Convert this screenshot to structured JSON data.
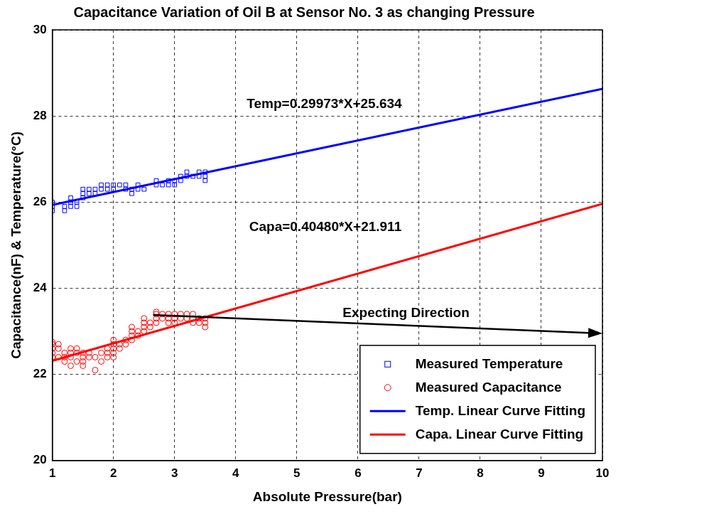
{
  "chart_data": {
    "type": "scatter",
    "title": "Capacitance Variation of Oil B at Sensor No. 3 as changing Pressure",
    "x_label": "Absolute Pressure(bar)",
    "y_label": "Capacitance(nF) & Temperature(°C)",
    "xlim": [
      1,
      10
    ],
    "xticks": [
      1,
      2,
      3,
      4,
      5,
      6,
      7,
      8,
      9,
      10
    ],
    "ylim": [
      20,
      30
    ],
    "yticks": [
      20,
      22,
      24,
      26,
      28,
      30
    ],
    "grid": true,
    "legend": "lower right",
    "series": [
      {
        "name": "Measured Temperature",
        "type": "scatter",
        "marker": "square",
        "color": "#0000ff",
        "x": [
          1.0,
          1.0,
          1.0,
          1.2,
          1.2,
          1.3,
          1.3,
          1.3,
          1.4,
          1.4,
          1.5,
          1.5,
          1.5,
          1.6,
          1.6,
          1.7,
          1.7,
          1.8,
          1.8,
          1.9,
          1.9,
          2.0,
          2.0,
          2.1,
          2.2,
          2.2,
          2.3,
          2.3,
          2.4,
          2.4,
          2.5,
          2.7,
          2.7,
          2.8,
          2.9,
          2.9,
          3.0,
          3.0,
          3.1,
          3.1,
          3.2,
          3.2,
          3.3,
          3.4,
          3.4,
          3.5,
          3.5,
          3.5
        ],
        "values": [
          25.8,
          25.9,
          26.0,
          25.8,
          25.9,
          25.9,
          26.0,
          26.1,
          26.0,
          25.9,
          26.1,
          26.3,
          26.2,
          26.2,
          26.3,
          26.2,
          26.3,
          26.3,
          26.4,
          26.3,
          26.4,
          26.3,
          26.4,
          26.4,
          26.3,
          26.4,
          26.2,
          26.3,
          26.3,
          26.4,
          26.3,
          26.4,
          26.5,
          26.4,
          26.4,
          26.5,
          26.5,
          26.4,
          26.5,
          26.6,
          26.6,
          26.7,
          26.6,
          26.7,
          26.6,
          26.7,
          26.6,
          26.5
        ]
      },
      {
        "name": "Measured Capacitance",
        "type": "scatter",
        "marker": "circle",
        "color": "#ff0000",
        "x": [
          1.0,
          1.0,
          1.0,
          1.0,
          1.0,
          1.1,
          1.1,
          1.1,
          1.2,
          1.2,
          1.2,
          1.3,
          1.3,
          1.3,
          1.3,
          1.4,
          1.4,
          1.4,
          1.5,
          1.5,
          1.5,
          1.5,
          1.6,
          1.6,
          1.7,
          1.7,
          1.8,
          1.8,
          1.9,
          1.9,
          1.9,
          2.0,
          2.0,
          2.0,
          2.0,
          2.0,
          2.1,
          2.1,
          2.2,
          2.2,
          2.3,
          2.3,
          2.3,
          2.3,
          2.4,
          2.4,
          2.5,
          2.5,
          2.5,
          2.5,
          2.6,
          2.6,
          2.7,
          2.7,
          2.7,
          2.7,
          2.8,
          2.8,
          2.9,
          2.9,
          2.9,
          3.0,
          3.0,
          3.0,
          3.1,
          3.1,
          3.2,
          3.2,
          3.3,
          3.3,
          3.3,
          3.4,
          3.4,
          3.5,
          3.5,
          3.5
        ],
        "values": [
          22.4,
          22.5,
          22.6,
          22.7,
          22.75,
          22.4,
          22.6,
          22.7,
          22.3,
          22.5,
          22.4,
          22.2,
          22.4,
          22.5,
          22.6,
          22.5,
          22.3,
          22.6,
          22.2,
          22.3,
          22.4,
          22.5,
          22.4,
          22.5,
          22.1,
          22.4,
          22.3,
          22.5,
          22.4,
          22.5,
          22.6,
          22.4,
          22.5,
          22.6,
          22.7,
          22.8,
          22.6,
          22.7,
          22.7,
          22.8,
          22.8,
          22.9,
          23.0,
          23.1,
          22.9,
          23.0,
          23.0,
          23.1,
          23.2,
          23.3,
          23.1,
          23.2,
          23.2,
          23.3,
          23.4,
          23.45,
          23.3,
          23.4,
          23.2,
          23.3,
          23.4,
          23.2,
          23.3,
          23.4,
          23.3,
          23.4,
          23.3,
          23.4,
          23.2,
          23.3,
          23.4,
          23.2,
          23.3,
          23.1,
          23.2,
          23.3
        ]
      },
      {
        "name": "Temp. Linear Curve Fitting",
        "type": "line",
        "line_style": "solid",
        "color": "#0000ff",
        "x": [
          1,
          10
        ],
        "values": [
          25.934,
          28.631
        ]
      },
      {
        "name": "Capa. Linear Curve Fitting",
        "type": "line",
        "line_style": "solid",
        "color": "#ff0000",
        "x": [
          1,
          10
        ],
        "values": [
          22.316,
          25.959
        ]
      }
    ],
    "annotations": [
      {
        "text": "Temp=0.29973*X+25.634",
        "x": 4.18,
        "y": 28.27
      },
      {
        "text": "Capa=0.40480*X+21.911",
        "x": 4.22,
        "y": 25.42
      },
      {
        "text": "Expecting Direction",
        "x": 5.75,
        "y": 23.41
      }
    ],
    "arrows": [
      {
        "x": [
          2.65,
          10
        ],
        "y": [
          23.38,
          22.95
        ]
      }
    ]
  }
}
